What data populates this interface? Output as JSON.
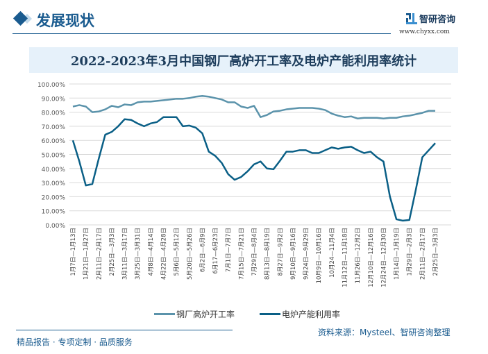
{
  "header": {
    "section_title": "发展现状",
    "logo_text": "智研咨询",
    "logo_url": "www.chyxx.com"
  },
  "chart_data": {
    "type": "line",
    "title": "2022-2023年3月中国钢厂高炉开工率及电炉产能利用率统计",
    "ylim": [
      0,
      100
    ],
    "y_ticks": [
      "0.00%",
      "10.00%",
      "20.00%",
      "30.00%",
      "40.00%",
      "50.00%",
      "60.00%",
      "70.00%",
      "80.00%",
      "90.00%",
      "100.00%"
    ],
    "grid": true,
    "legend_position": "bottom",
    "x_labels": [
      "1月7日—1月13日",
      "1月21日—1月27日",
      "2月11日—2月17日",
      "2月25日—3月3日",
      "3月11日—3月17日",
      "3月25日—3月31日",
      "4月8日—4月14日",
      "4月22日—4月28日",
      "5月6日—5月12日",
      "5月20日—5月26日",
      "6月2日—6月9日",
      "6月17—6月23日",
      "7月1日—7月7日",
      "7月15日—7月21日",
      "7月29日—8月4日",
      "8月13日—8月19日",
      "8月27日—9月2日",
      "9月10日—9月16日",
      "9月24日—9月29日",
      "10月9日—10月16日",
      "10月24—11月4日",
      "11月12日—11月18日",
      "11月26日—12月2日",
      "12月10日—12月16日",
      "12月24日—12月30日",
      "1月14日—1月19日",
      "1月29日—2月3日",
      "2月11日—2月17日",
      "2月25日—3月3日"
    ],
    "series": [
      {
        "name": "钢厂高炉开工率",
        "color": "#5b93ab",
        "values": [
          84,
          85,
          84,
          80,
          80.5,
          82,
          84.5,
          83.5,
          85.5,
          85,
          87,
          87.5,
          87.5,
          88,
          88.5,
          89,
          89.5,
          89.5,
          90,
          91,
          91.5,
          91,
          90,
          89,
          87,
          87,
          84,
          83,
          84.5,
          76.5,
          78,
          80.5,
          81,
          82,
          82.5,
          83,
          83,
          83,
          82.5,
          81.5,
          79,
          77.5,
          76.5,
          77,
          75.5,
          76,
          76,
          76,
          75.5,
          76,
          76,
          77,
          77.5,
          78.5,
          79.5,
          81,
          81
        ]
      },
      {
        "name": "电炉产能利用率",
        "color": "#0a5f86",
        "values": [
          60,
          45,
          28,
          29,
          47,
          64,
          66,
          70,
          75,
          74.5,
          72,
          70,
          72,
          73,
          76.5,
          76.5,
          76.5,
          70,
          70.5,
          69,
          65,
          52,
          49,
          44,
          36,
          32,
          34,
          38,
          43,
          45,
          40,
          39.5,
          45.5,
          52,
          52,
          53,
          53,
          51,
          51,
          53,
          55,
          54,
          55,
          55.5,
          53,
          51,
          52,
          48,
          45,
          20,
          4,
          3,
          3.5,
          25,
          48,
          53,
          58
        ]
      }
    ]
  },
  "footer": {
    "source": "资料来源：Mysteel、智研咨询整理",
    "slogan": "精品报告 · 专项定制 · 品质服务"
  }
}
